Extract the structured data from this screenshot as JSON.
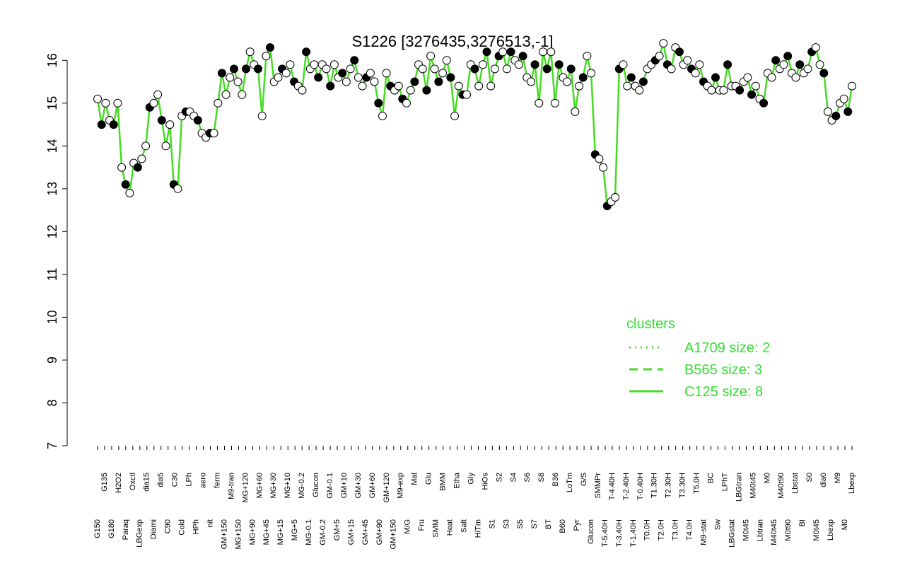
{
  "chart_data": {
    "type": "line",
    "title": "S1226 [3276435,3276513,-1]",
    "xlabel": "",
    "ylabel": "",
    "ylim": [
      7,
      16.5
    ],
    "yticks": [
      7,
      8,
      9,
      10,
      11,
      12,
      13,
      14,
      15,
      16
    ],
    "grid": false,
    "line_color": "#44dd22",
    "legend": {
      "title": "clusters",
      "placement": "right",
      "entries": [
        {
          "label": "A1709 size: 2",
          "style": "dotted"
        },
        {
          "label": "B565 size: 3",
          "style": "dashed"
        },
        {
          "label": "C125 size: 8",
          "style": "solid"
        }
      ]
    },
    "x_tick_labels": [
      "G150",
      "G135",
      "G180",
      "H2O2",
      "Paraq",
      "Oxctl",
      "LBGexp",
      "dia15",
      "Diami",
      "dia5",
      "C90",
      "C30",
      "Cold",
      "LPh",
      "HPh",
      "aero",
      "nit",
      "ferm",
      "GM+150",
      "M9-tran",
      "MG+150",
      "MG+120",
      "MG+90",
      "MG+60",
      "MG+45",
      "MG+30",
      "MG+15",
      "MG+10",
      "MG+5",
      "MG-0.2",
      "MG-0.1",
      "Glucon",
      "GM-0.2",
      "GM-0.1",
      "GM+5",
      "GM+10",
      "GM+15",
      "GM+30",
      "GM+45",
      "GM+60",
      "GM+90",
      "GM+120",
      "GM+150",
      "M9-exp",
      "M/G",
      "Mal",
      "Fru",
      "Glu",
      "SMM",
      "BMM",
      "Heat",
      "Etha",
      "Salt",
      "Gly",
      "HiTm",
      "HiOs",
      "S1",
      "S2",
      "S3",
      "S4",
      "S5",
      "S6",
      "S7",
      "S8",
      "BT",
      "B36",
      "B60",
      "LoTm",
      "Pyr",
      "G/S",
      "Glucon",
      "SMMPr",
      "T-5.40H",
      "T-4.40H",
      "T-3.40H",
      "T-2.40H",
      "T-1.40H",
      "T-0.40H",
      "T0.0H",
      "T1.30H",
      "T2.0H",
      "T2.30H",
      "T3.0H",
      "T3.30H",
      "T4.0H",
      "T5.0H",
      "M9-stat",
      "BC",
      "Sw",
      "LPhT",
      "LBGstat",
      "LBGtran",
      "M0t45",
      "M40t45",
      "Lbtran",
      "M0",
      "M40t45",
      "M40t90",
      "M0t90",
      "Lbstat",
      "BI",
      "S0",
      "M0t45",
      "dia0",
      "Lbexp",
      "M9",
      "M0",
      "Lbexp"
    ],
    "series": [
      {
        "values": [
          15.1,
          14.5,
          15.0,
          14.6,
          14.5,
          15.0,
          13.5,
          13.1,
          12.9,
          13.6,
          13.5,
          13.7,
          14.0,
          14.9,
          15.0,
          15.2,
          14.6,
          14.0,
          14.5,
          13.1,
          13.0,
          14.7,
          14.8,
          14.8,
          14.7,
          14.6,
          14.3,
          14.2,
          14.3,
          14.3,
          15.0,
          15.7,
          15.2,
          15.6,
          15.8,
          15.5,
          15.2,
          15.8,
          16.2,
          15.9,
          15.8,
          14.7,
          16.1,
          16.3,
          15.5,
          15.6,
          15.8,
          15.7,
          15.9,
          15.5,
          15.4,
          15.3,
          16.2,
          15.8,
          15.9,
          15.6,
          15.9,
          15.8,
          15.4,
          15.9,
          15.6,
          15.7,
          15.5,
          15.8,
          16.0,
          15.6,
          15.4,
          15.6,
          15.7,
          15.5,
          15.0,
          14.7,
          15.7,
          15.4,
          15.3,
          15.4,
          15.1,
          15.0,
          15.3,
          15.5,
          15.9,
          15.8,
          15.3,
          16.1,
          15.8,
          15.5,
          15.7,
          16.0,
          15.6,
          14.7,
          15.4,
          15.2,
          15.2,
          15.9,
          15.8,
          15.4,
          15.9,
          16.2,
          15.4,
          15.8,
          16.1,
          16.2,
          15.8,
          16.2,
          16.0,
          15.9,
          16.1,
          15.6,
          15.5,
          15.9,
          15.0,
          16.2,
          15.8,
          16.2,
          15.0,
          15.9,
          15.6,
          15.5,
          15.8,
          14.8,
          15.4,
          15.6,
          16.1,
          15.7,
          13.8,
          13.7,
          13.5,
          12.6,
          12.7,
          12.8,
          15.8,
          15.9,
          15.4,
          15.6,
          15.4,
          15.3,
          15.5,
          15.8,
          15.9,
          16.0,
          16.1,
          16.4,
          15.9,
          15.8,
          16.3,
          16.2,
          15.9,
          16.0,
          15.8,
          15.7,
          15.9,
          15.5,
          15.4,
          15.3,
          15.6,
          15.3,
          15.3,
          15.9,
          15.4,
          15.4,
          15.3,
          15.5,
          15.6,
          15.2,
          15.4,
          15.1,
          15.0,
          15.7,
          15.6,
          16.0,
          15.8,
          15.9,
          16.1,
          15.7,
          15.6,
          15.9,
          15.7,
          15.8,
          16.2,
          16.3,
          15.9,
          15.7,
          14.8,
          14.6,
          14.7,
          15.0,
          15.1,
          14.8,
          15.4
        ]
      }
    ]
  }
}
